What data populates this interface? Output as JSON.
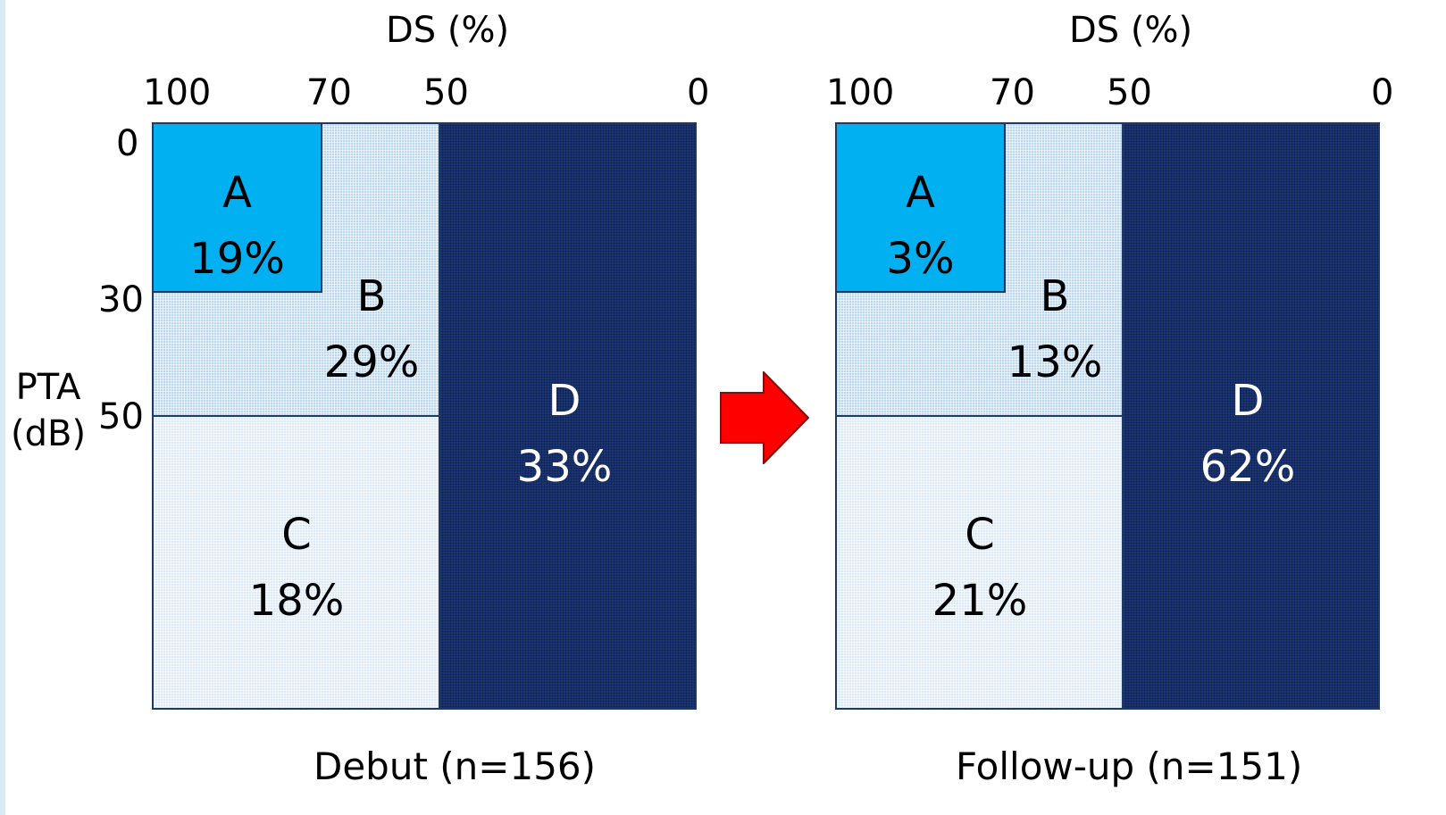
{
  "y_axis": {
    "label_line1": "PTA",
    "label_line2": "(dB)"
  },
  "arrow_color": "#ff0000",
  "colors": {
    "zone_a": "#00b0f0",
    "zone_b": "#bdd7ee",
    "zone_c": "#dbeaf6",
    "zone_d": "#1a3474",
    "border": "#1f3864"
  },
  "panels": [
    {
      "x_axis_title": "DS (%)",
      "x_ticks": [
        "100",
        "70",
        "50",
        "0"
      ],
      "y_ticks": [
        "0",
        "30",
        "50"
      ],
      "caption": "Debut (n=156)",
      "zones": {
        "a": {
          "letter": "A",
          "percent": "19%"
        },
        "b": {
          "letter": "B",
          "percent": "29%"
        },
        "c": {
          "letter": "C",
          "percent": "18%"
        },
        "d": {
          "letter": "D",
          "percent": "33%"
        }
      }
    },
    {
      "x_axis_title": "DS (%)",
      "x_ticks": [
        "100",
        "70",
        "50",
        "0"
      ],
      "y_ticks": [],
      "caption": "Follow-up (n=151)",
      "zones": {
        "a": {
          "letter": "A",
          "percent": "3%"
        },
        "b": {
          "letter": "B",
          "percent": "13%"
        },
        "c": {
          "letter": "C",
          "percent": "21%"
        },
        "d": {
          "letter": "D",
          "percent": "62%"
        }
      }
    }
  ]
}
